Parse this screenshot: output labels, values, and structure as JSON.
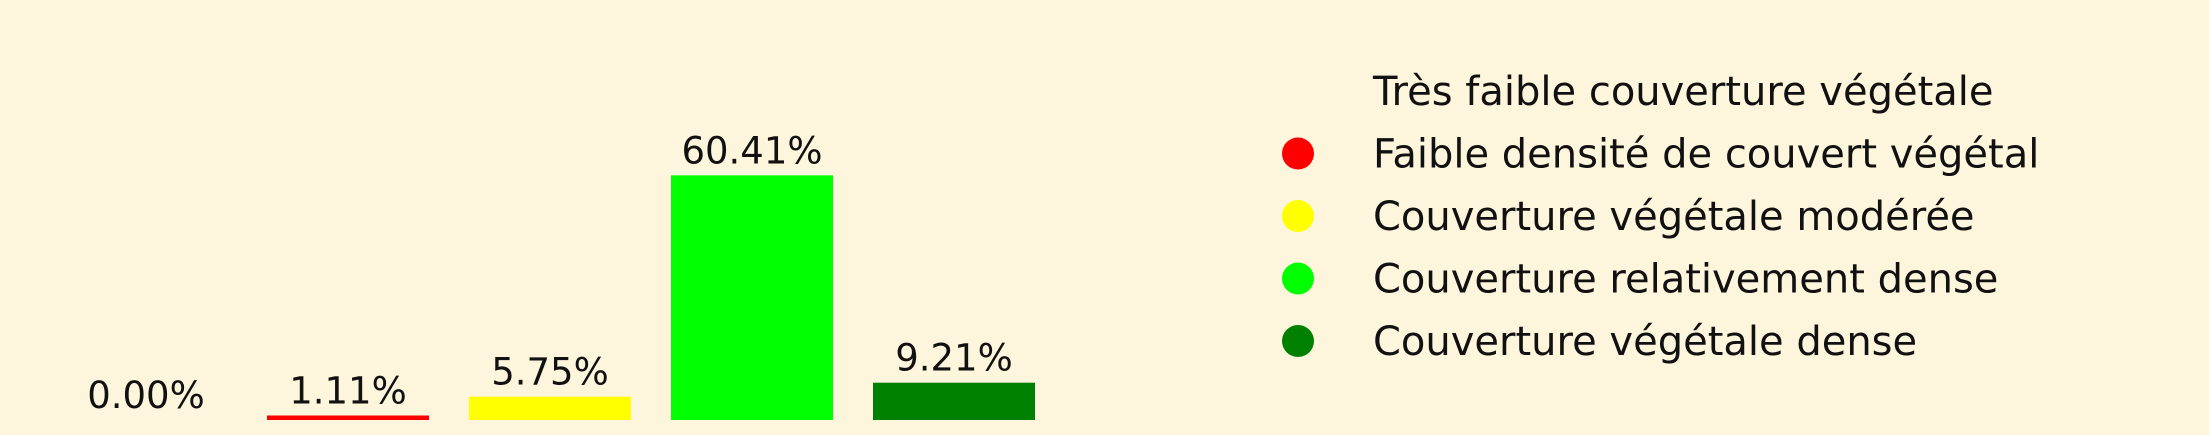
{
  "chart_data": {
    "type": "bar",
    "title": "",
    "xlabel": "",
    "ylabel": "",
    "ylim": [
      0,
      62
    ],
    "grid": false,
    "legend_placement": "right",
    "categories": [
      "Très faible couverture végétale",
      "Faible densité de couvert végétal",
      "Couverture végétale modérée",
      "Couverture relativement dense",
      "Couverture végétale dense"
    ],
    "values": [
      0.0,
      1.11,
      5.75,
      60.41,
      9.21
    ],
    "labels": [
      "0.00%",
      "1.11%",
      "5.75%",
      "60.41%",
      "9.21%"
    ],
    "colors": [
      "#fdf6dc",
      "#ff0000",
      "#ffff00",
      "#00ff00",
      "#008000"
    ]
  }
}
